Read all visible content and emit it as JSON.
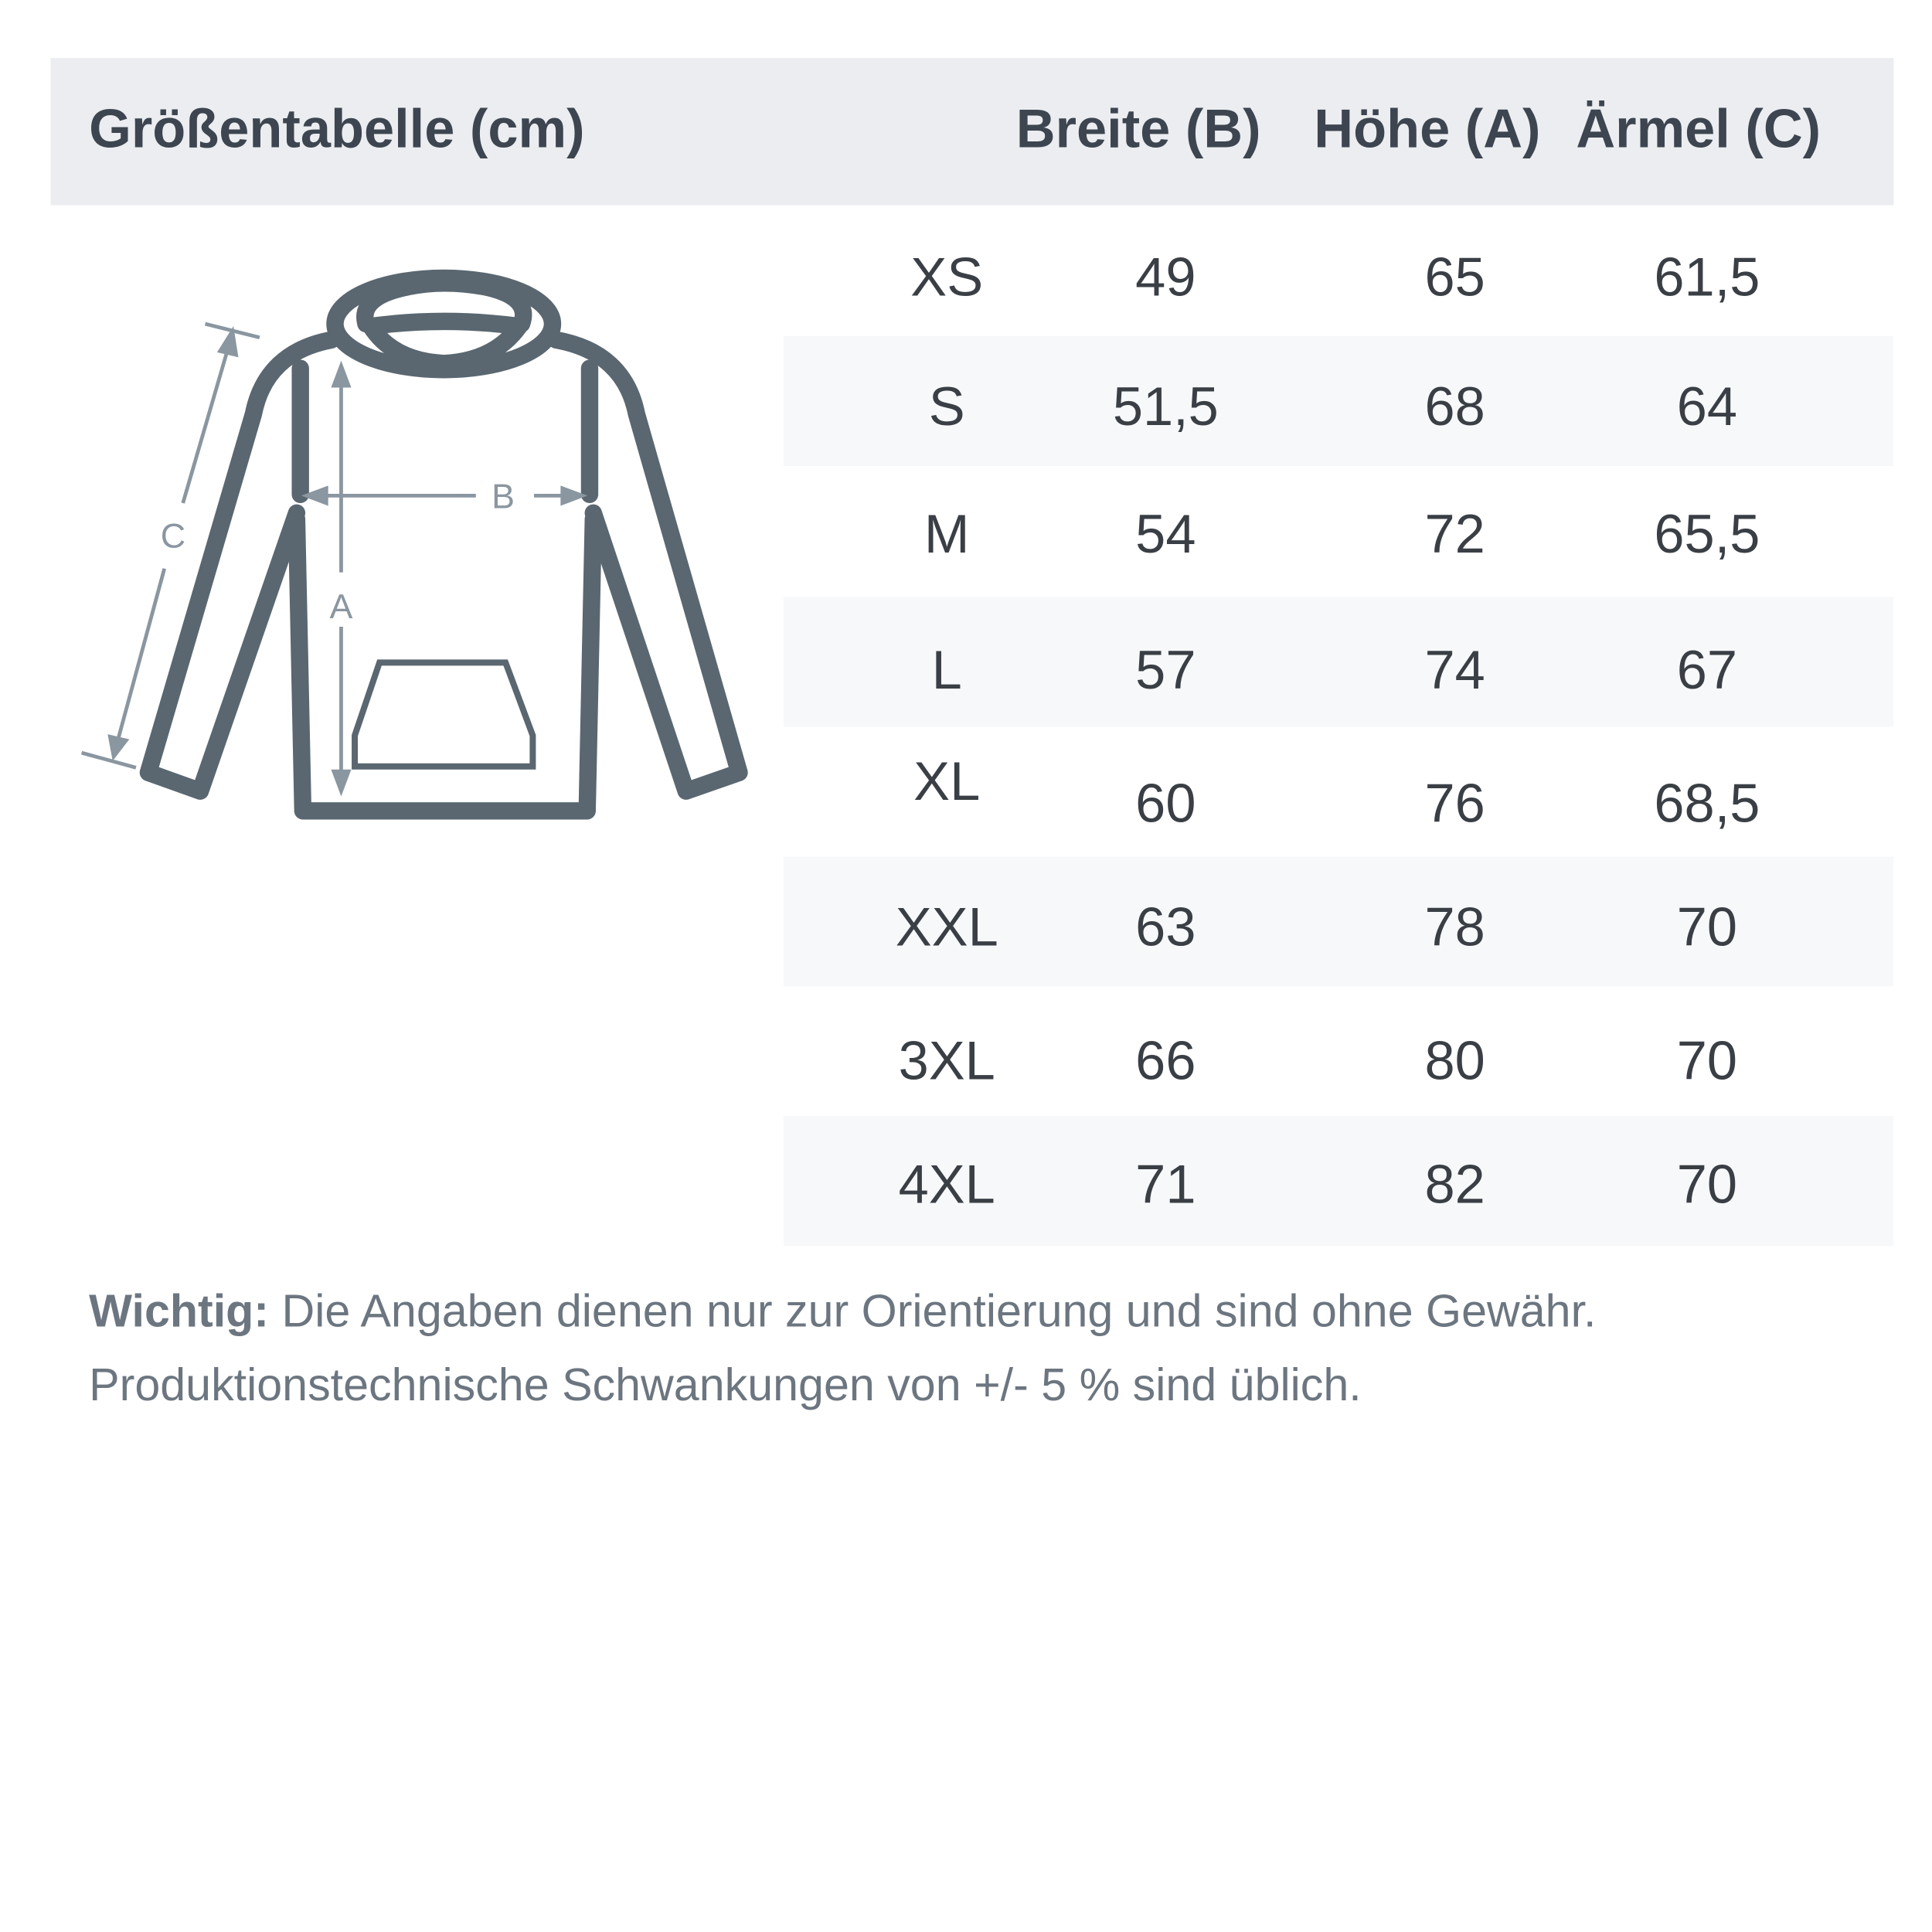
{
  "title": "Größentabelle (cm)",
  "columns": [
    "Breite (B)",
    "Höhe (A)",
    "Ärmel (C)"
  ],
  "rows": [
    {
      "size": "XS",
      "breite": "49",
      "hoehe": "65",
      "aermel": "61,5"
    },
    {
      "size": "S",
      "breite": "51,5",
      "hoehe": "68",
      "aermel": "64"
    },
    {
      "size": "M",
      "breite": "54",
      "hoehe": "72",
      "aermel": "65,5"
    },
    {
      "size": "L",
      "breite": "57",
      "hoehe": "74",
      "aermel": "67"
    },
    {
      "size": "XL",
      "breite": "60",
      "hoehe": "76",
      "aermel": "68,5"
    },
    {
      "size": "XXL",
      "breite": "63",
      "hoehe": "78",
      "aermel": "70"
    },
    {
      "size": "3XL",
      "breite": "66",
      "hoehe": "80",
      "aermel": "70"
    },
    {
      "size": "4XL",
      "breite": "71",
      "hoehe": "82",
      "aermel": "70"
    }
  ],
  "diagram": {
    "label_a": "A",
    "label_b": "B",
    "label_c": "C"
  },
  "note": {
    "bold": "Wichtig:",
    "line1": " Die Angaben dienen nur zur Orientierung und sind ohne Gewähr.",
    "line2": "Produktionstechnische Schwankungen von +/- 5 % sind üblich."
  },
  "colors": {
    "header_bg": "#ebedf0",
    "stripe_bg": "#f7f8fa",
    "garment": "#5a6770",
    "measure": "#8a96a0"
  }
}
